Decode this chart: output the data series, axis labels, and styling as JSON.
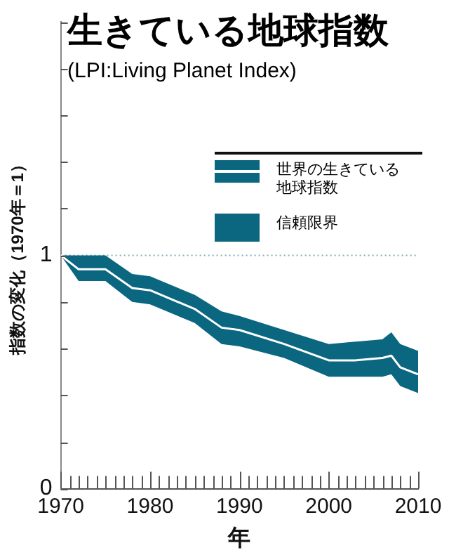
{
  "chart_data": {
    "type": "line",
    "title": "生きている地球指数",
    "subtitle": "(LPI:Living Planet Index)",
    "xlabel": "年",
    "ylabel": "指数の変化（1970年＝1）",
    "x": [
      1970,
      1972,
      1975,
      1978,
      1980,
      1985,
      1988,
      1990,
      1995,
      2000,
      2003,
      2006,
      2007,
      2008,
      2010
    ],
    "series": [
      {
        "name": "世界の生きている地球指数",
        "color": "#ffffff",
        "values": [
          1.0,
          0.94,
          0.94,
          0.86,
          0.85,
          0.77,
          0.69,
          0.68,
          0.62,
          0.55,
          0.55,
          0.56,
          0.57,
          0.52,
          0.49
        ],
        "lower": [
          1.0,
          0.89,
          0.89,
          0.8,
          0.79,
          0.71,
          0.62,
          0.61,
          0.56,
          0.48,
          0.48,
          0.48,
          0.49,
          0.44,
          0.41
        ],
        "upper": [
          1.0,
          1.0,
          1.0,
          0.92,
          0.91,
          0.83,
          0.76,
          0.74,
          0.68,
          0.62,
          0.63,
          0.64,
          0.67,
          0.62,
          0.59
        ]
      }
    ],
    "annotations": [
      "信頼限界"
    ],
    "xlim": [
      1970,
      2010
    ],
    "xticks": [
      1970,
      {
        "value": 1971,
        "label": null
      },
      {
        "value": 1972,
        "label": null
      },
      {
        "value": 1973,
        "label": null
      },
      {
        "value": 1974,
        "label": null
      },
      {
        "value": 1975,
        "label": null
      },
      {
        "value": 1976,
        "label": null
      },
      {
        "value": 1977,
        "label": null
      },
      {
        "value": 1978,
        "label": null
      },
      {
        "value": 1979,
        "label": null
      },
      1980,
      {
        "value": 1981,
        "label": null
      },
      {
        "value": 1982,
        "label": null
      },
      {
        "value": 1983,
        "label": null
      },
      {
        "value": 1984,
        "label": null
      },
      {
        "value": 1985,
        "label": null
      },
      {
        "value": 1986,
        "label": null
      },
      {
        "value": 1987,
        "label": null
      },
      {
        "value": 1988,
        "label": null
      },
      {
        "value": 1989,
        "label": null
      },
      1990,
      {
        "value": 1991,
        "label": null
      },
      {
        "value": 1992,
        "label": null
      },
      {
        "value": 1993,
        "label": null
      },
      {
        "value": 1994,
        "label": null
      },
      {
        "value": 1995,
        "label": null
      },
      {
        "value": 1996,
        "label": null
      },
      {
        "value": 1997,
        "label": null
      },
      {
        "value": 1998,
        "label": null
      },
      {
        "value": 1999,
        "label": null
      },
      2000,
      {
        "value": 2001,
        "label": null
      },
      {
        "value": 2002,
        "label": null
      },
      {
        "value": 2003,
        "label": null
      },
      {
        "value": 2004,
        "label": null
      },
      {
        "value": 2005,
        "label": null
      },
      {
        "value": 2006,
        "label": null
      },
      {
        "value": 2007,
        "label": null
      },
      {
        "value": 2008,
        "label": null
      },
      {
        "value": 2009,
        "label": null
      },
      2010
    ],
    "ylim": [
      0,
      2
    ],
    "yticks": [
      0,
      {
        "value": 0.2,
        "label": null
      },
      {
        "value": 0.4,
        "label": null
      },
      {
        "value": 0.6,
        "label": null
      },
      {
        "value": 0.8,
        "label": null
      },
      1,
      {
        "value": 1.2,
        "label": null
      },
      {
        "value": 1.4,
        "label": null
      },
      {
        "value": 1.6,
        "label": null
      },
      {
        "value": 1.8,
        "label": null
      },
      {
        "value": 2,
        "label": null
      }
    ],
    "ref_lines": [
      {
        "axis": "y",
        "value": 1,
        "color": "#7fb0b4",
        "line_style": "dotted"
      }
    ],
    "grid": false,
    "legend": "top right",
    "marker": "none"
  }
}
